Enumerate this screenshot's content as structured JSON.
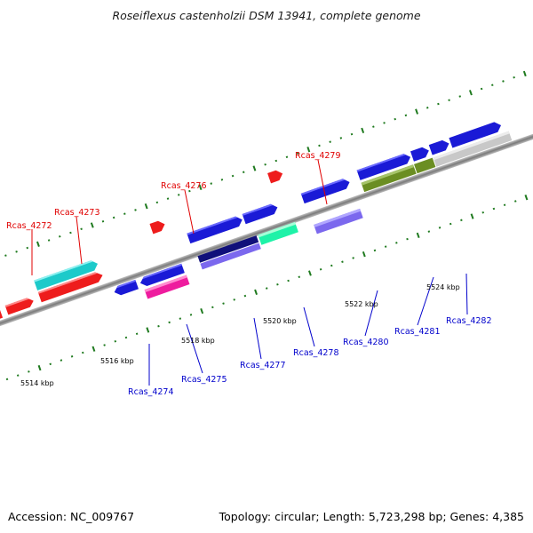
{
  "title": "Roseiflexus castenholzii DSM 13941, complete genome",
  "footer": {
    "accession": "Accession: NC_009767",
    "topology": "Topology: circular; Length: 5,723,298 bp; Genes: 4,385"
  },
  "scale_labels": [
    "5514 kbp",
    "5516 kbp",
    "5518 kbp",
    "5520 kbp",
    "5522 kbp",
    "5524 kbp"
  ],
  "genes_top": [
    "Rcas_4272",
    "Rcas_4273",
    "Rcas_4276",
    "Rcas_4279"
  ],
  "genes_bottom": [
    "Rcas_4274",
    "Rcas_4275",
    "Rcas_4277",
    "Rcas_4278",
    "Rcas_4280",
    "Rcas_4281",
    "Rcas_4282"
  ],
  "colors": {
    "backbone": "#8c8c8c",
    "tick_green": "#1f7a1f",
    "top_label": "#e00000",
    "bottom_label": "#0000cc",
    "red": "#ee1c1c",
    "blue": "#1a1ad6",
    "cyan": "#1ccaca",
    "olive": "#6b8e23",
    "magenta": "#ee1c9e",
    "navy": "#10107a",
    "slate": "#7b68ee",
    "aquamarine": "#1ef2a8",
    "silver": "#c8c8c8"
  }
}
